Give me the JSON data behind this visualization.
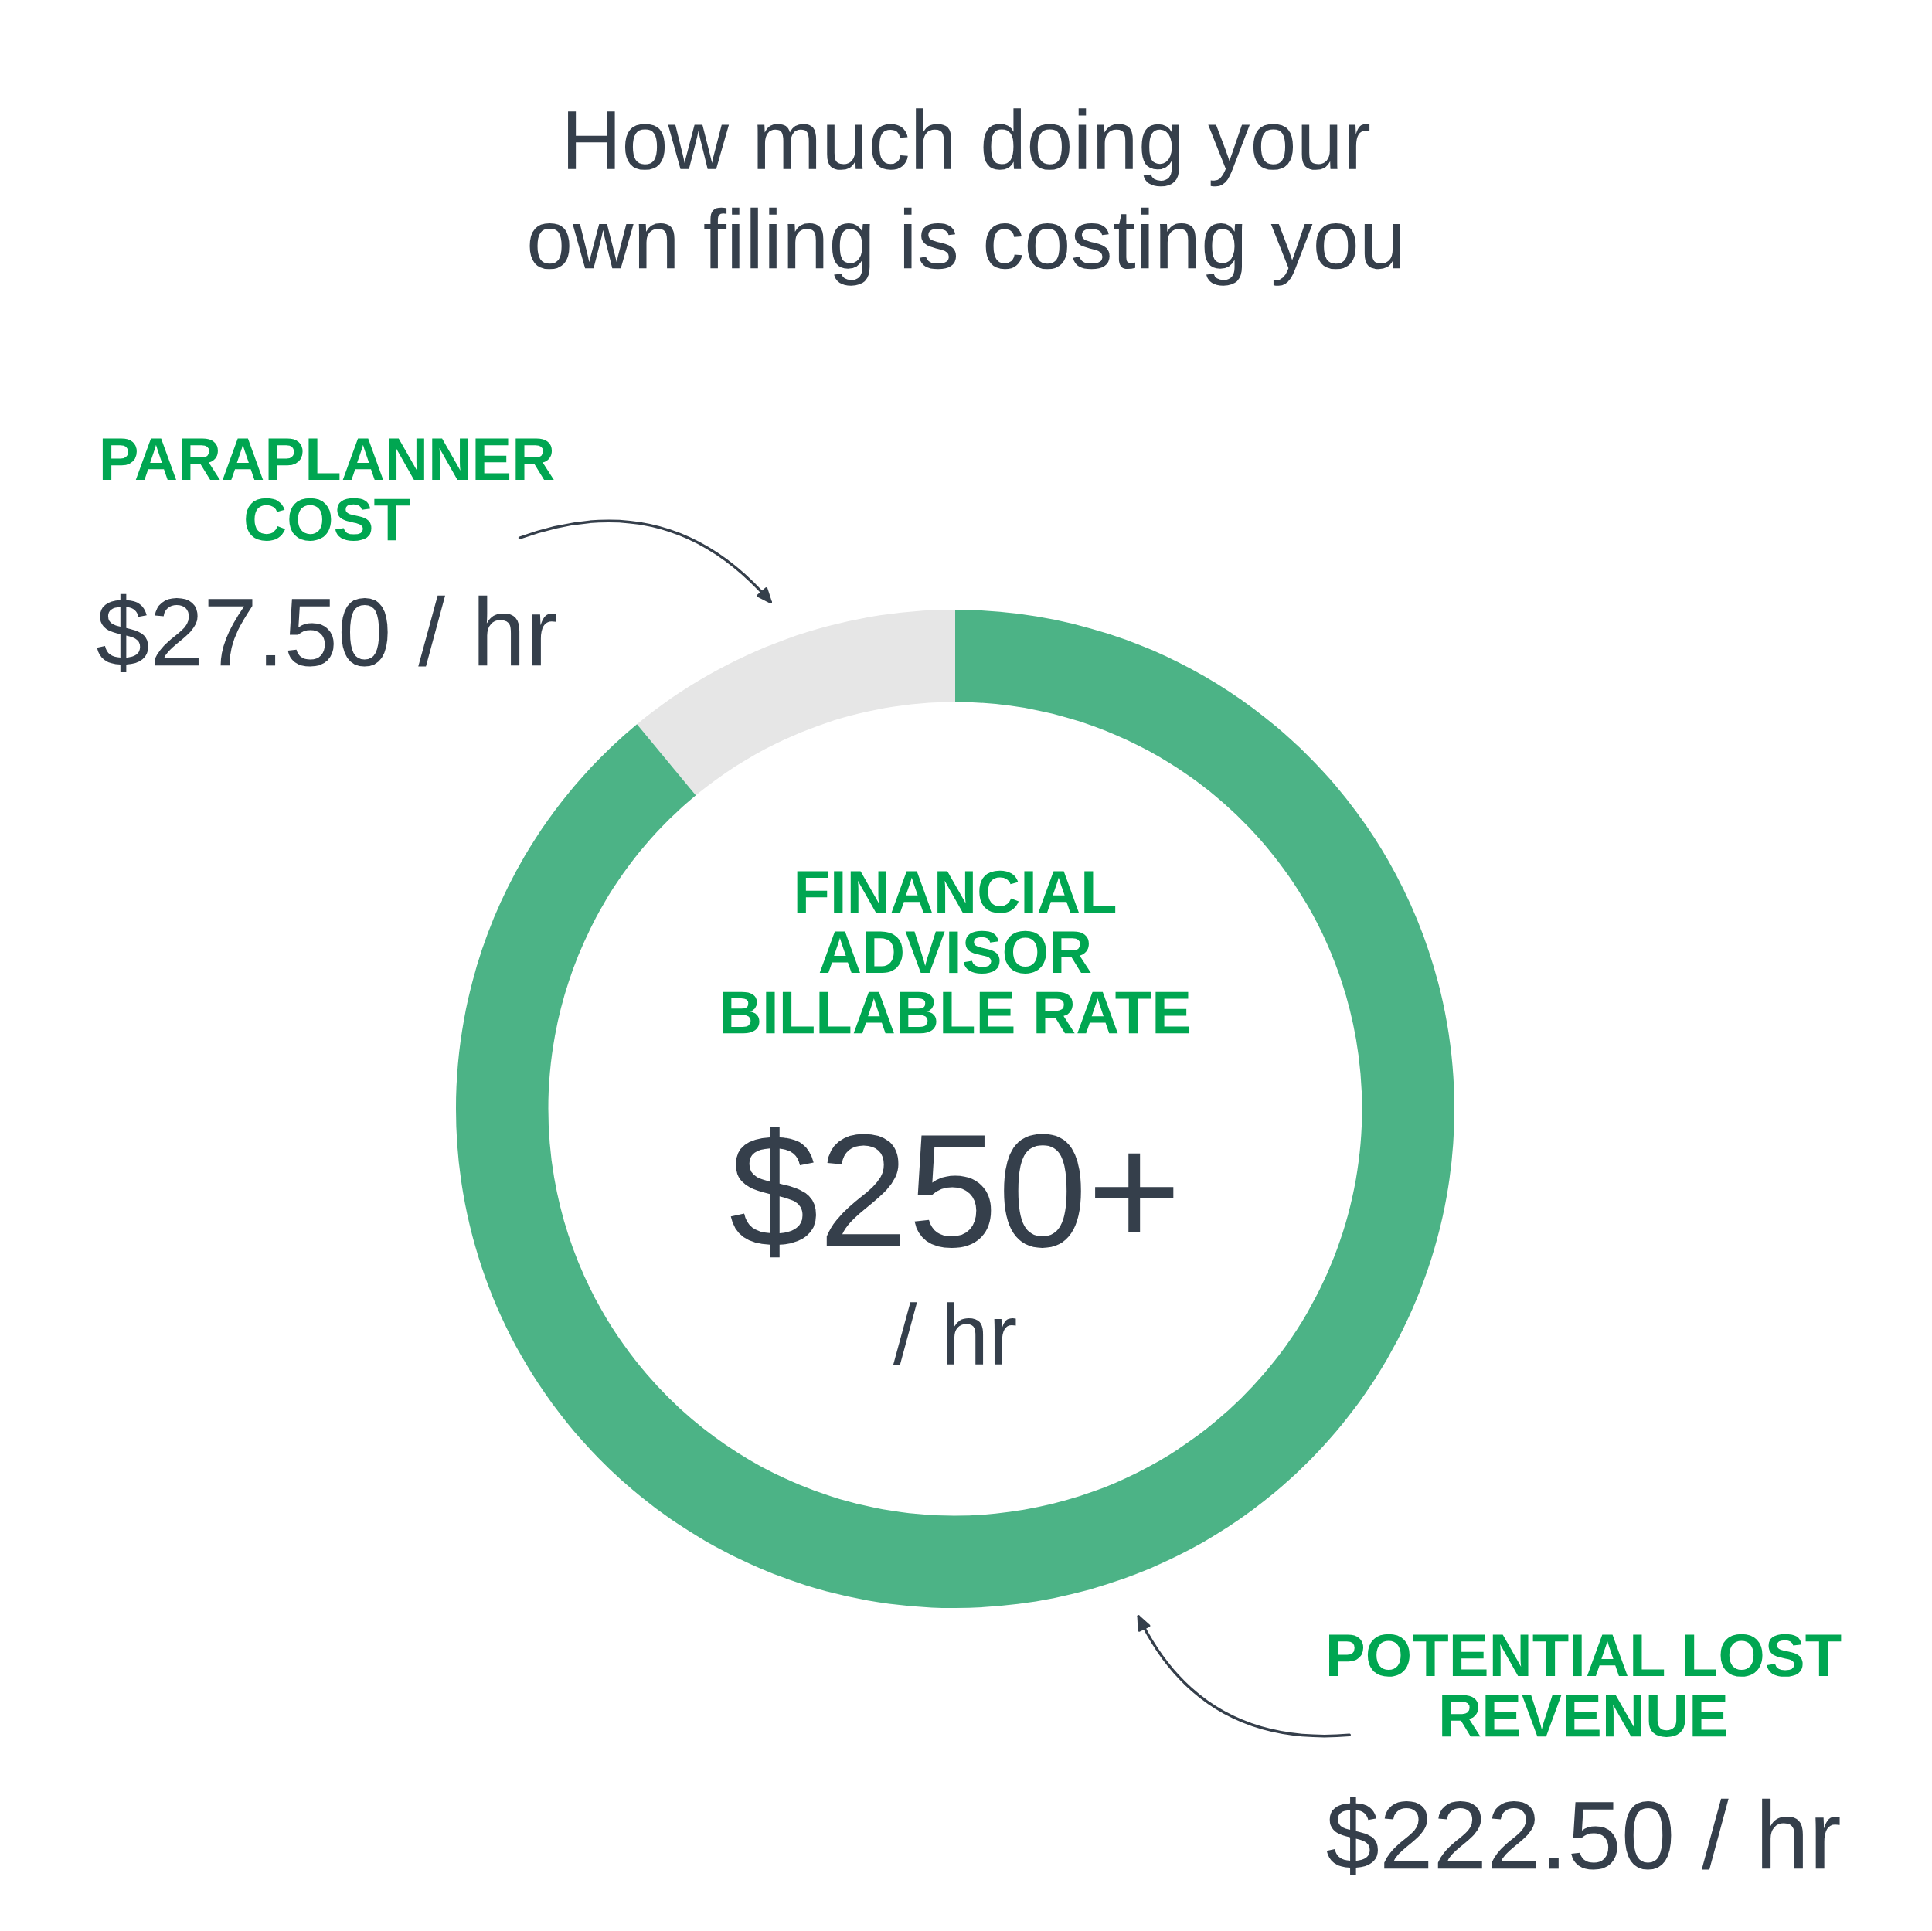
{
  "chart_data": {
    "type": "donut",
    "title": "How much doing your\nown filing is costing you",
    "categories": [
      "PARAPLANNER\nCOST",
      "POTENTIAL LOST\nREVENUE"
    ],
    "values": [
      27.5,
      222.5
    ],
    "colors": [
      "#e6e6e6",
      "#4cb386"
    ],
    "value_labels": [
      "$27.50 / hr",
      "$222.50 / hr"
    ],
    "annotations": [
      "FINANCIAL\nADVISOR\nBILLABLE RATE",
      "$250+",
      "/ hr"
    ]
  }
}
